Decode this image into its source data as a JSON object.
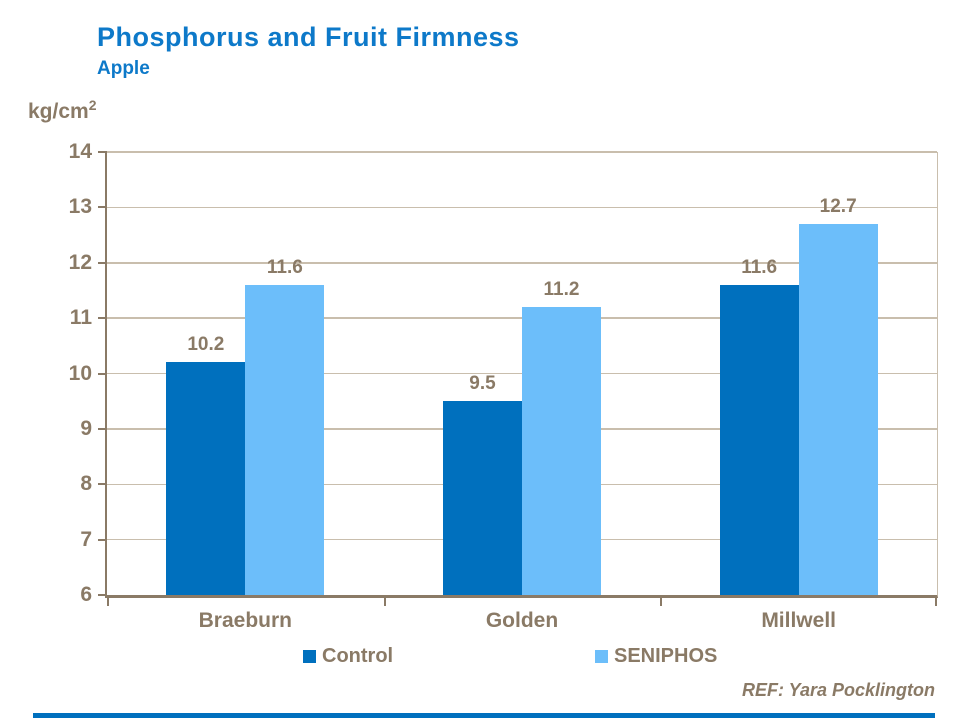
{
  "header": {
    "title": "Phosphorus and Fruit Firmness",
    "subtitle": "Apple"
  },
  "axis_unit": {
    "base": "kg/cm",
    "sup": "2"
  },
  "footer": {
    "ref": "REF: Yara Pocklington"
  },
  "colors": {
    "title_blue": "#0d79c9",
    "text_taupe": "#8a7a66",
    "gridline": "#c9bead",
    "axis": "#8a7a66",
    "control_bar": "#0070be",
    "seniphos_bar": "#6cbefa",
    "bottom_accent": "#0070be"
  },
  "chart_data": {
    "type": "bar",
    "categories": [
      "Braeburn",
      "Golden",
      "Millwell"
    ],
    "series": [
      {
        "name": "Control",
        "color": "#0070be",
        "values": [
          10.2,
          9.5,
          11.6
        ]
      },
      {
        "name": "SENIPHOS",
        "color": "#6cbefa",
        "values": [
          11.6,
          11.2,
          12.7
        ]
      }
    ],
    "title": "Phosphorus and Fruit Firmness",
    "subtitle": "Apple",
    "ylabel": "kg/cm2",
    "ylim": [
      6,
      14
    ],
    "ytick_step": 1,
    "grid": true,
    "data_labels": true,
    "legend_position": "bottom"
  }
}
